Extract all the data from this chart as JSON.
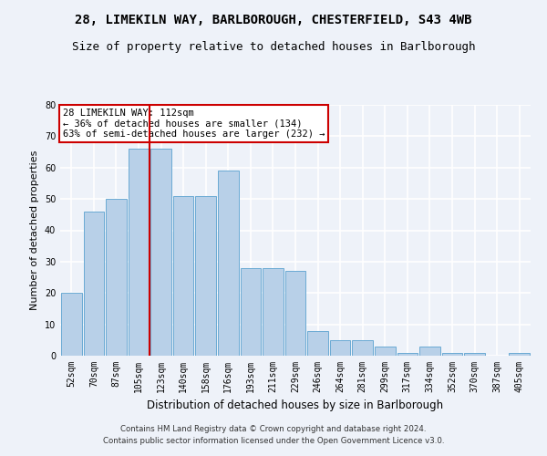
{
  "title": "28, LIMEKILN WAY, BARLBOROUGH, CHESTERFIELD, S43 4WB",
  "subtitle": "Size of property relative to detached houses in Barlborough",
  "xlabel": "Distribution of detached houses by size in Barlborough",
  "ylabel": "Number of detached properties",
  "categories": [
    "52sqm",
    "70sqm",
    "87sqm",
    "105sqm",
    "123sqm",
    "140sqm",
    "158sqm",
    "176sqm",
    "193sqm",
    "211sqm",
    "229sqm",
    "246sqm",
    "264sqm",
    "281sqm",
    "299sqm",
    "317sqm",
    "334sqm",
    "352sqm",
    "370sqm",
    "387sqm",
    "405sqm"
  ],
  "values": [
    20,
    46,
    50,
    66,
    66,
    51,
    51,
    59,
    28,
    28,
    27,
    8,
    5,
    5,
    3,
    1,
    3,
    1,
    1,
    0,
    1
  ],
  "bar_color": "#b8d0e8",
  "bar_edgecolor": "#6aaad4",
  "vline_x": 3.5,
  "vline_color": "#cc0000",
  "annotation_text": "28 LIMEKILN WAY: 112sqm\n← 36% of detached houses are smaller (134)\n63% of semi-detached houses are larger (232) →",
  "annotation_box_color": "white",
  "annotation_box_edgecolor": "#cc0000",
  "ylim": [
    0,
    80
  ],
  "yticks": [
    0,
    10,
    20,
    30,
    40,
    50,
    60,
    70,
    80
  ],
  "footer1": "Contains HM Land Registry data © Crown copyright and database right 2024.",
  "footer2": "Contains public sector information licensed under the Open Government Licence v3.0.",
  "background_color": "#eef2f9",
  "grid_color": "#ffffff",
  "title_fontsize": 10,
  "subtitle_fontsize": 9,
  "tick_fontsize": 7,
  "ylabel_fontsize": 8,
  "xlabel_fontsize": 8.5
}
